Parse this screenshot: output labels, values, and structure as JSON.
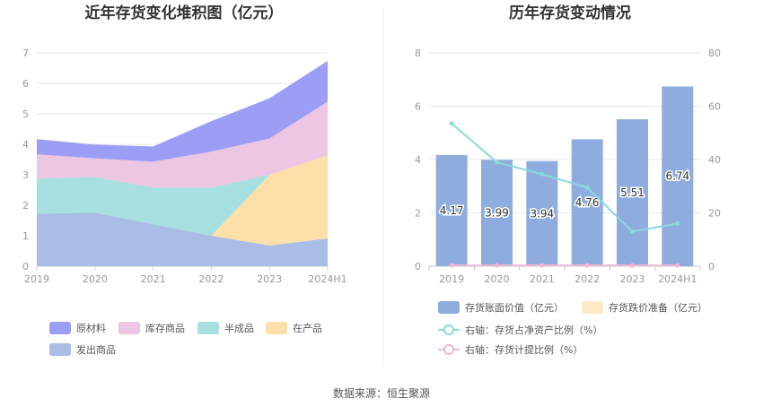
{
  "source_label": "数据来源：恒生聚源",
  "chart_data": [
    {
      "type": "area",
      "stacked": true,
      "title": "近年存货变化堆积图（亿元）",
      "categories": [
        "2019",
        "2020",
        "2021",
        "2022",
        "2023",
        "2024H1"
      ],
      "ylim": [
        0,
        7
      ],
      "yticks": [
        "0",
        "1",
        "2",
        "3",
        "4",
        "5",
        "6",
        "7"
      ],
      "grid": true,
      "legend_position": "bottom-left",
      "series": [
        {
          "name": "发出商品",
          "color": "#a9bde6",
          "values": [
            1.72,
            1.76,
            1.38,
            1.0,
            0.68,
            0.91
          ]
        },
        {
          "name": "在产品",
          "color": "#fddfa9",
          "values": [
            0.0,
            0.0,
            0.0,
            0.0,
            2.32,
            2.73
          ]
        },
        {
          "name": "半成品",
          "color": "#a6e0e0",
          "values": [
            1.15,
            1.16,
            1.2,
            1.58,
            0.0,
            0.0
          ]
        },
        {
          "name": "库存商品",
          "color": "#ecc6e3",
          "values": [
            0.8,
            0.62,
            0.85,
            1.18,
            1.19,
            1.76
          ]
        },
        {
          "name": "原材料",
          "color": "#9c9ef5",
          "values": [
            0.5,
            0.45,
            0.5,
            1.0,
            1.32,
            1.34
          ]
        }
      ],
      "legend_order": [
        "原材料",
        "库存商品",
        "半成品",
        "在产品",
        "发出商品"
      ]
    },
    {
      "type": "bar",
      "title": "历年存货变动情况",
      "categories": [
        "2019",
        "2020",
        "2021",
        "2022",
        "2023",
        "2024H1"
      ],
      "ylim": [
        0,
        8
      ],
      "yticks": [
        "0",
        "2",
        "4",
        "6",
        "8"
      ],
      "y2lim": [
        0,
        80
      ],
      "y2ticks": [
        "0",
        "20",
        "40",
        "60",
        "80"
      ],
      "grid": true,
      "legend_position": "bottom",
      "bar_series": [
        {
          "name": "存货账面价值（亿元）",
          "color": "#8eadde",
          "values": [
            4.17,
            3.99,
            3.94,
            4.76,
            5.51,
            6.74
          ],
          "labels": [
            "4.17",
            "3.99",
            "3.94",
            "4.76",
            "5.51",
            "6.74"
          ]
        },
        {
          "name": "存货跌价准备（亿元）",
          "color": "#fde9c6",
          "values": [
            0.02,
            0.02,
            0.02,
            0.02,
            0.02,
            0.02
          ]
        }
      ],
      "line_series": [
        {
          "name": "右轴：存货占净资产比例（%）",
          "color": "#88d9dc",
          "axis": "right",
          "values": [
            53.5,
            39.0,
            34.5,
            29.5,
            13.0,
            16.0
          ]
        },
        {
          "name": "右轴：存货计提比例（%）",
          "color": "#f2b6d4",
          "axis": "right",
          "values": [
            0.3,
            0.3,
            0.3,
            0.3,
            0.3,
            0.3
          ]
        }
      ]
    }
  ]
}
